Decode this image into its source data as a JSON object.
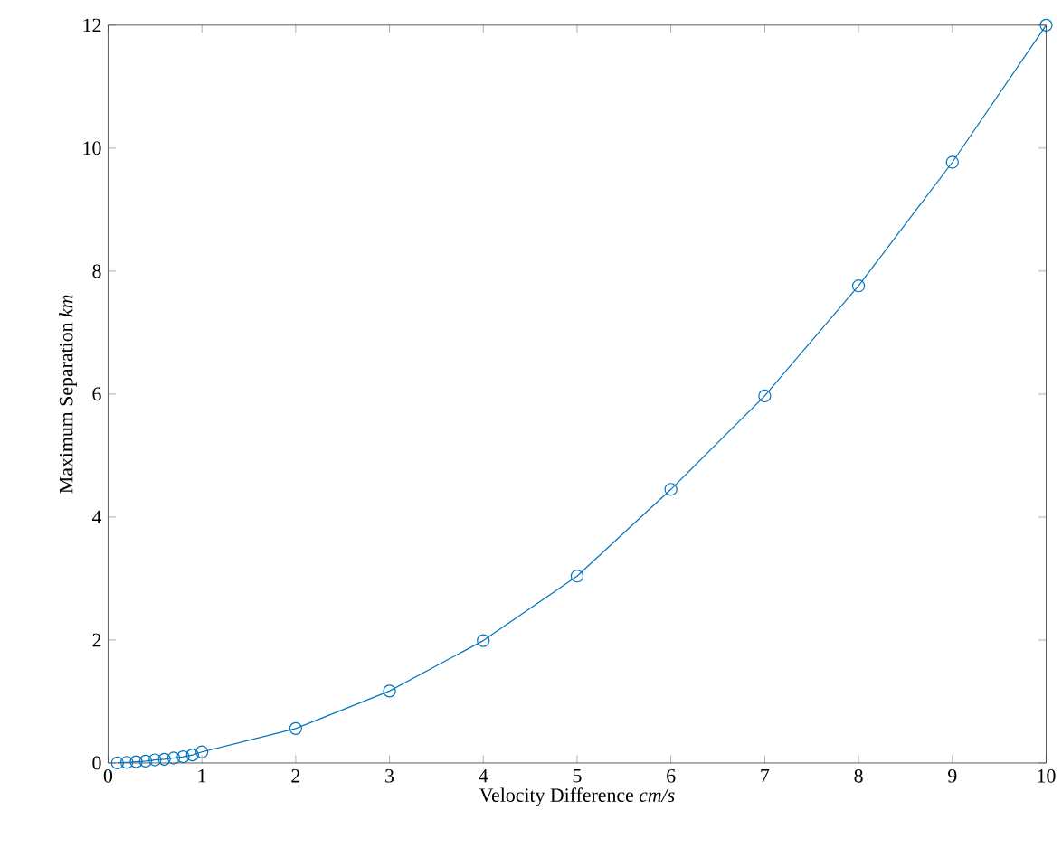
{
  "chart_data": {
    "type": "line",
    "xlabel": "Velocity Difference *cm/s*",
    "ylabel": "Maximum Separation *km*",
    "x": [
      0.1,
      0.2,
      0.3,
      0.4,
      0.5,
      0.6,
      0.7,
      0.8,
      0.9,
      1,
      2,
      3,
      4,
      5,
      6,
      7,
      8,
      9,
      10
    ],
    "series": [
      {
        "color": "#0072bd",
        "values": [
          0.0,
          0.01,
          0.02,
          0.03,
          0.05,
          0.06,
          0.08,
          0.1,
          0.13,
          0.18,
          0.56,
          1.17,
          1.99,
          3.04,
          4.45,
          5.97,
          7.76,
          9.77,
          12.0
        ]
      }
    ],
    "xlim": [
      0,
      10
    ],
    "ylim": [
      0,
      12
    ],
    "xticks": [
      0,
      1,
      2,
      3,
      4,
      5,
      6,
      7,
      8,
      9,
      10
    ],
    "yticks": [
      0,
      2,
      4,
      6,
      8,
      10,
      12
    ],
    "marker": "circle",
    "line_style": "solid"
  }
}
